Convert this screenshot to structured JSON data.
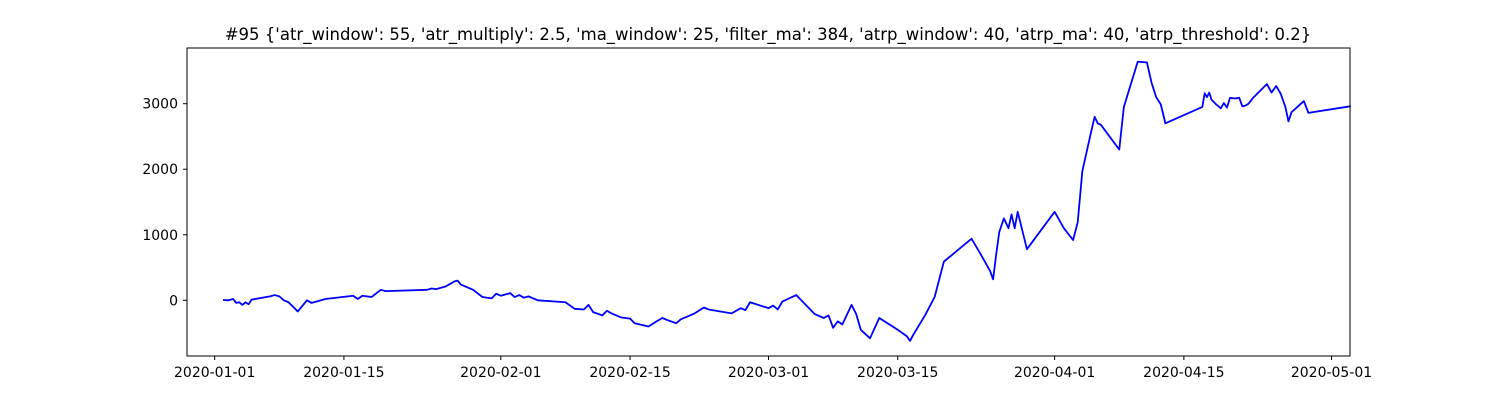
{
  "chart_data": {
    "type": "line",
    "title": "#95 {'atr_window': 55, 'atr_multiply': 2.5, 'ma_window': 25, 'filter_ma': 384, 'atrp_window': 40, 'atrp_ma': 40, 'atrp_threshold': 0.2}",
    "xlabel": "",
    "ylabel": "",
    "x_axis": "date",
    "xlim": [
      "2019-12-29",
      "2020-05-03"
    ],
    "ylim": [
      -850,
      3850
    ],
    "x_ticks": [
      "2020-01-01",
      "2020-01-15",
      "2020-02-01",
      "2020-02-15",
      "2020-03-01",
      "2020-03-15",
      "2020-04-01",
      "2020-04-15",
      "2020-05-01"
    ],
    "y_ticks": [
      0,
      1000,
      2000,
      3000
    ],
    "grid": false,
    "legend": "none",
    "series": [
      {
        "color": "#0000ff",
        "points": [
          [
            "2020-01-02",
            5
          ],
          [
            "2020-01-02",
            0
          ],
          [
            "2020-01-03",
            20
          ],
          [
            "2020-01-03",
            -40
          ],
          [
            "2020-01-03",
            -30
          ],
          [
            "2020-01-04",
            -70
          ],
          [
            "2020-01-04",
            -30
          ],
          [
            "2020-01-04",
            -60
          ],
          [
            "2020-01-05",
            10
          ],
          [
            "2020-01-07",
            60
          ],
          [
            "2020-01-07",
            80
          ],
          [
            "2020-01-08",
            60
          ],
          [
            "2020-01-08",
            0
          ],
          [
            "2020-01-09",
            -30
          ],
          [
            "2020-01-10",
            -170
          ],
          [
            "2020-01-11",
            0
          ],
          [
            "2020-01-11",
            -40
          ],
          [
            "2020-01-12",
            -20
          ],
          [
            "2020-01-13",
            20
          ],
          [
            "2020-01-16",
            70
          ],
          [
            "2020-01-16",
            20
          ],
          [
            "2020-01-17",
            70
          ],
          [
            "2020-01-18",
            50
          ],
          [
            "2020-01-19",
            160
          ],
          [
            "2020-01-19",
            140
          ],
          [
            "2020-01-24",
            160
          ],
          [
            "2020-01-24",
            180
          ],
          [
            "2020-01-25",
            170
          ],
          [
            "2020-01-26",
            210
          ],
          [
            "2020-01-27",
            290
          ],
          [
            "2020-01-27",
            300
          ],
          [
            "2020-01-27",
            240
          ],
          [
            "2020-01-29",
            160
          ],
          [
            "2020-01-30",
            50
          ],
          [
            "2020-01-31",
            30
          ],
          [
            "2020-01-31",
            100
          ],
          [
            "2020-02-01",
            70
          ],
          [
            "2020-02-02",
            110
          ],
          [
            "2020-02-02",
            50
          ],
          [
            "2020-02-03",
            80
          ],
          [
            "2020-02-03",
            40
          ],
          [
            "2020-02-04",
            60
          ],
          [
            "2020-02-05",
            0
          ],
          [
            "2020-02-08",
            -30
          ],
          [
            "2020-02-09",
            -130
          ],
          [
            "2020-02-10",
            -140
          ],
          [
            "2020-02-10",
            -70
          ],
          [
            "2020-02-11",
            -180
          ],
          [
            "2020-02-12",
            -230
          ],
          [
            "2020-02-12",
            -160
          ],
          [
            "2020-02-13",
            -200
          ],
          [
            "2020-02-14",
            -260
          ],
          [
            "2020-02-15",
            -280
          ],
          [
            "2020-02-15",
            -350
          ],
          [
            "2020-02-17",
            -400
          ],
          [
            "2020-02-18",
            -310
          ],
          [
            "2020-02-18",
            -270
          ],
          [
            "2020-02-19",
            -300
          ],
          [
            "2020-02-20",
            -350
          ],
          [
            "2020-02-20",
            -290
          ],
          [
            "2020-02-22",
            -200
          ],
          [
            "2020-02-23",
            -110
          ],
          [
            "2020-02-23",
            -140
          ],
          [
            "2020-02-26",
            -200
          ],
          [
            "2020-02-27",
            -120
          ],
          [
            "2020-02-27",
            -150
          ],
          [
            "2020-02-28",
            -30
          ],
          [
            "2020-03-01",
            -120
          ],
          [
            "2020-03-01",
            -80
          ],
          [
            "2020-03-02",
            -140
          ],
          [
            "2020-03-02",
            -20
          ],
          [
            "2020-03-04",
            80
          ],
          [
            "2020-03-06",
            -210
          ],
          [
            "2020-03-07",
            -270
          ],
          [
            "2020-03-07",
            -230
          ],
          [
            "2020-03-08",
            -420
          ],
          [
            "2020-03-08",
            -320
          ],
          [
            "2020-03-09",
            -370
          ],
          [
            "2020-03-10",
            -70
          ],
          [
            "2020-03-10",
            -210
          ],
          [
            "2020-03-11",
            -450
          ],
          [
            "2020-03-12",
            -580
          ],
          [
            "2020-03-13",
            -270
          ],
          [
            "2020-03-15",
            -450
          ],
          [
            "2020-03-16",
            -550
          ],
          [
            "2020-03-16",
            -620
          ],
          [
            "2020-03-16",
            -530
          ],
          [
            "2020-03-18",
            -220
          ],
          [
            "2020-03-19",
            50
          ],
          [
            "2020-03-20",
            590
          ],
          [
            "2020-03-23",
            940
          ],
          [
            "2020-03-24",
            700
          ],
          [
            "2020-03-25",
            450
          ],
          [
            "2020-03-25",
            320
          ],
          [
            "2020-03-25",
            700
          ],
          [
            "2020-03-26",
            1040
          ],
          [
            "2020-03-26",
            1250
          ],
          [
            "2020-03-27",
            1100
          ],
          [
            "2020-03-27",
            1310
          ],
          [
            "2020-03-27",
            1100
          ],
          [
            "2020-03-28",
            1350
          ],
          [
            "2020-03-29",
            780
          ],
          [
            "2020-04-01",
            1350
          ],
          [
            "2020-04-02",
            1100
          ],
          [
            "2020-04-03",
            920
          ],
          [
            "2020-04-03",
            1190
          ],
          [
            "2020-04-04",
            1970
          ],
          [
            "2020-04-05",
            2600
          ],
          [
            "2020-04-05",
            2800
          ],
          [
            "2020-04-05",
            2700
          ],
          [
            "2020-04-06",
            2680
          ],
          [
            "2020-04-08",
            2300
          ],
          [
            "2020-04-08",
            2950
          ],
          [
            "2020-04-10",
            3640
          ],
          [
            "2020-04-11",
            3630
          ],
          [
            "2020-04-11",
            3320
          ],
          [
            "2020-04-12",
            3100
          ],
          [
            "2020-04-12",
            2990
          ],
          [
            "2020-04-13",
            2700
          ],
          [
            "2020-04-17",
            2950
          ],
          [
            "2020-04-17",
            3160
          ],
          [
            "2020-04-17",
            3100
          ],
          [
            "2020-04-17",
            3170
          ],
          [
            "2020-04-18",
            3060
          ],
          [
            "2020-04-18",
            2990
          ],
          [
            "2020-04-19",
            2930
          ],
          [
            "2020-04-19",
            3010
          ],
          [
            "2020-04-19",
            2940
          ],
          [
            "2020-04-20",
            3090
          ],
          [
            "2020-04-20",
            3080
          ],
          [
            "2020-04-21",
            3090
          ],
          [
            "2020-04-21",
            2960
          ],
          [
            "2020-04-21",
            2970
          ],
          [
            "2020-04-22",
            3000
          ],
          [
            "2020-04-22",
            3090
          ],
          [
            "2020-04-24",
            3300
          ],
          [
            "2020-04-24",
            3170
          ],
          [
            "2020-04-25",
            3270
          ],
          [
            "2020-04-25",
            3150
          ],
          [
            "2020-04-26",
            2950
          ],
          [
            "2020-04-26",
            2730
          ],
          [
            "2020-04-26",
            2870
          ],
          [
            "2020-04-28",
            3040
          ],
          [
            "2020-04-28",
            2860
          ],
          [
            "2020-05-03",
            2960
          ]
        ]
      }
    ]
  }
}
